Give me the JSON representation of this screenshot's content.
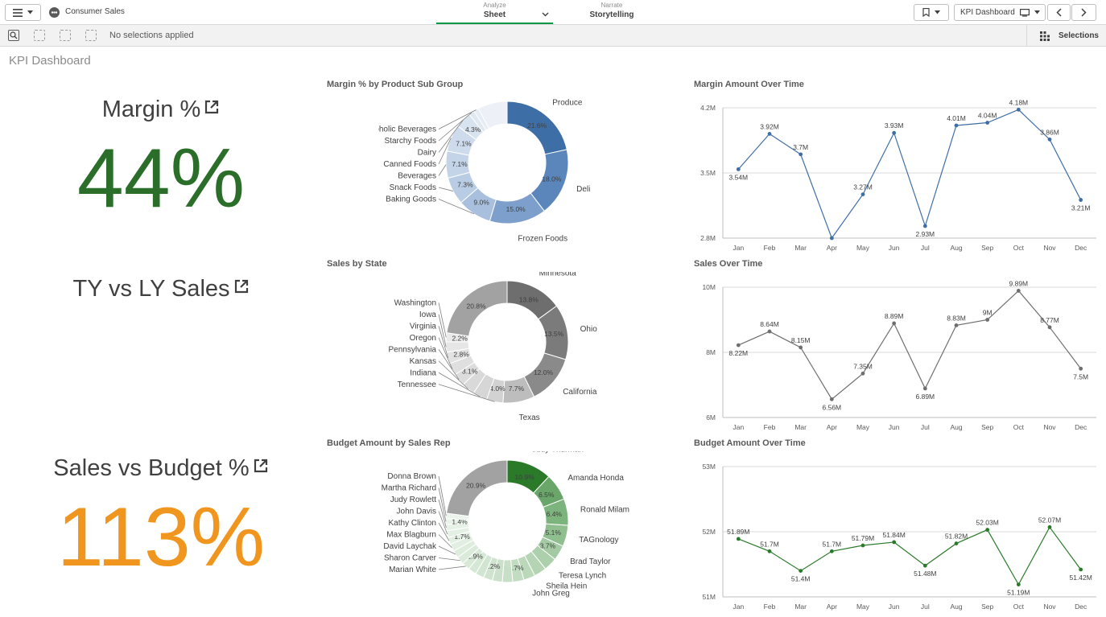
{
  "topbar": {
    "app_name": "Consumer Sales",
    "tabs": [
      {
        "small": "Analyze",
        "big": "Sheet"
      },
      {
        "small": "Narrate",
        "big": "Storytelling"
      }
    ],
    "sheet_nav_label": "KPI Dashboard"
  },
  "selection_bar": {
    "status": "No selections applied",
    "selections_label": "Selections"
  },
  "sheet_title": "KPI Dashboard",
  "kpis": [
    {
      "title": "Margin %",
      "value": "44%",
      "color": "#2a6e2a"
    },
    {
      "title": "TY vs LY Sales",
      "value": "",
      "color": "#404040"
    },
    {
      "title": "Sales vs Budget %",
      "value": "113%",
      "color": "#f0961e"
    }
  ],
  "colors": {
    "accent": "#009845",
    "blue": "#3f6ea6",
    "gray": "#666666",
    "green": "#2a7a2a"
  },
  "chart_data": [
    {
      "id": "donut1",
      "type": "pie",
      "title": "Margin % by Product Sub Group",
      "slices": [
        {
          "label": "Produce",
          "value": 21.6,
          "pct_label": "21.6%",
          "color": "#3e6ea6"
        },
        {
          "label": "Deli",
          "value": 18.0,
          "pct_label": "18.0%",
          "color": "#5a86bb"
        },
        {
          "label": "Frozen Foods",
          "value": 15.0,
          "pct_label": "15.0%",
          "color": "#7d9fcb"
        },
        {
          "label": "Baking Goods",
          "value": 9.0,
          "pct_label": "9.0%",
          "color": "#a8c0de"
        },
        {
          "label": "Snack Foods",
          "value": 7.3,
          "pct_label": "7.3%",
          "color": "#b8cce4"
        },
        {
          "label": "Beverages",
          "value": 7.1,
          "pct_label": "7.1%",
          "color": "#c3d4e9"
        },
        {
          "label": "Canned Foods",
          "value": 7.1,
          "pct_label": "7.1%",
          "color": "#cddbed"
        },
        {
          "label": "Dairy",
          "value": 4.3,
          "pct_label": "4.3%",
          "color": "#d8e3f0"
        },
        {
          "label": "Starchy Foods",
          "value": 1.5,
          "pct_label": "",
          "color": "#e0e8f2"
        },
        {
          "label": "Alcoholic Beverages",
          "value": 1.3,
          "pct_label": "",
          "color": "#e6ecf4"
        },
        {
          "label": "",
          "value": 7.8,
          "pct_label": "",
          "color": "#edf1f7"
        }
      ]
    },
    {
      "id": "donut2",
      "type": "pie",
      "title": "Sales by State",
      "slices": [
        {
          "label": "Minnesota",
          "value": 13.8,
          "pct_label": "13.8%",
          "color": "#6e6e6e"
        },
        {
          "label": "Ohio",
          "value": 13.5,
          "pct_label": "13.5%",
          "color": "#7b7b7b"
        },
        {
          "label": "California",
          "value": 12.0,
          "pct_label": "12.0%",
          "color": "#8a8a8a"
        },
        {
          "label": "Texas",
          "value": 7.7,
          "pct_label": "7.7%",
          "color": "#bdbdbd"
        },
        {
          "label": "Tennessee",
          "value": 4.0,
          "pct_label": "4.0%",
          "color": "#d2d2d2"
        },
        {
          "label": "Indiana",
          "value": 3.5,
          "pct_label": "",
          "color": "#d6d6d6"
        },
        {
          "label": "Kansas",
          "value": 3.2,
          "pct_label": "",
          "color": "#d9d9d9"
        },
        {
          "label": "Pennsylvania",
          "value": 3.1,
          "pct_label": "3.1%",
          "color": "#dcdcdc"
        },
        {
          "label": "Oregon",
          "value": 2.9,
          "pct_label": "",
          "color": "#dfdfdf"
        },
        {
          "label": "Virginia",
          "value": 2.8,
          "pct_label": "2.8%",
          "color": "#e2e2e2"
        },
        {
          "label": "Iowa",
          "value": 2.5,
          "pct_label": "",
          "color": "#e6e6e6"
        },
        {
          "label": "Washington",
          "value": 2.2,
          "pct_label": "2.2%",
          "color": "#e9e9e9"
        },
        {
          "label": "",
          "value": 20.8,
          "pct_label": "20.8%",
          "color": "#a2a2a2"
        }
      ]
    },
    {
      "id": "donut3",
      "type": "pie",
      "title": "Budget Amount by Sales Rep",
      "slices": [
        {
          "label": "Judy Thurman",
          "value": 10.9,
          "pct_label": "10.9%",
          "color": "#2a7a2a"
        },
        {
          "label": "Amanda Honda",
          "value": 6.5,
          "pct_label": "6.5%",
          "color": "#6aa66a"
        },
        {
          "label": "Ronald Milam",
          "value": 6.4,
          "pct_label": "6.4%",
          "color": "#7db37d"
        },
        {
          "label": "TAGnology",
          "value": 5.1,
          "pct_label": "5.1%",
          "color": "#8fbe8f"
        },
        {
          "label": "Brad Taylor",
          "value": 3.7,
          "pct_label": "3.7%",
          "color": "#a3caa3"
        },
        {
          "label": "Teresa Lynch",
          "value": 3.2,
          "pct_label": "",
          "color": "#acd0ac"
        },
        {
          "label": "Sheila Hein",
          "value": 3.0,
          "pct_label": "",
          "color": "#b4d4b4"
        },
        {
          "label": "John Greg",
          "value": 2.8,
          "pct_label": "",
          "color": "#bbd8bb"
        },
        {
          "label": "",
          "value": 2.7,
          "pct_label": "2.7%",
          "color": "#c2dcc2"
        },
        {
          "label": "",
          "value": 2.5,
          "pct_label": "",
          "color": "#c7dfc7"
        },
        {
          "label": "",
          "value": 2.4,
          "pct_label": "",
          "color": "#cbe1cb"
        },
        {
          "label": "",
          "value": 2.2,
          "pct_label": "2.2%",
          "color": "#cfe3cf"
        },
        {
          "label": "",
          "value": 2.1,
          "pct_label": "",
          "color": "#d2e5d2"
        },
        {
          "label": "",
          "value": 2.0,
          "pct_label": "",
          "color": "#d5e7d5"
        },
        {
          "label": "Marian White",
          "value": 1.9,
          "pct_label": "1.9%",
          "color": "#d8e9d8"
        },
        {
          "label": "Sharon Carver",
          "value": 1.9,
          "pct_label": "",
          "color": "#dbebdb"
        },
        {
          "label": "David Laychak",
          "value": 1.8,
          "pct_label": "",
          "color": "#deecde"
        },
        {
          "label": "Max Blagburn",
          "value": 1.8,
          "pct_label": "",
          "color": "#e1eee1"
        },
        {
          "label": "Kathy Clinton",
          "value": 1.7,
          "pct_label": "1.7%",
          "color": "#e3efe3"
        },
        {
          "label": "John Davis",
          "value": 1.6,
          "pct_label": "",
          "color": "#e5f0e5"
        },
        {
          "label": "Judy Rowlett",
          "value": 1.5,
          "pct_label": "",
          "color": "#e7f2e7"
        },
        {
          "label": "Martha Richard",
          "value": 1.4,
          "pct_label": "1.4%",
          "color": "#e9f3e9"
        },
        {
          "label": "Donna Brown",
          "value": 1.3,
          "pct_label": "",
          "color": "#ebf4eb"
        },
        {
          "label": "",
          "value": 20.9,
          "pct_label": "20.9%",
          "color": "#a2a2a2"
        }
      ]
    },
    {
      "id": "line1",
      "type": "line",
      "title": "Margin Amount Over Time",
      "x": [
        "Jan",
        "Feb",
        "Mar",
        "Apr",
        "May",
        "Jun",
        "Jul",
        "Aug",
        "Sep",
        "Oct",
        "Nov",
        "Dec"
      ],
      "values": [
        3.54,
        3.92,
        3.7,
        2.8,
        3.27,
        3.93,
        2.93,
        4.01,
        4.04,
        4.18,
        3.86,
        3.21
      ],
      "labels": [
        "3.54M",
        "3.92M",
        "3.7M",
        "",
        "3.27M",
        "3.93M",
        "2.93M",
        "4.01M",
        "4.04M",
        "4.18M",
        "3.86M",
        "3.21M"
      ],
      "yticks": [
        "2.8M",
        "3.5M",
        "4.2M"
      ],
      "ylim": [
        2.8,
        4.2
      ],
      "color": "#3f6ea6"
    },
    {
      "id": "line2",
      "type": "line",
      "title": "Sales Over Time",
      "x": [
        "Jan",
        "Feb",
        "Mar",
        "Apr",
        "May",
        "Jun",
        "Jul",
        "Aug",
        "Sep",
        "Oct",
        "Nov",
        "Dec"
      ],
      "values": [
        8.22,
        8.64,
        8.15,
        6.56,
        7.35,
        8.89,
        6.89,
        8.83,
        9.0,
        9.89,
        8.77,
        7.5
      ],
      "labels": [
        "8.22M",
        "8.64M",
        "8.15M",
        "6.56M",
        "7.35M",
        "8.89M",
        "6.89M",
        "8.83M",
        "9M",
        "9.89M",
        "8.77M",
        "7.5M"
      ],
      "yticks": [
        "6M",
        "8M",
        "10M"
      ],
      "ylim": [
        6,
        10
      ],
      "color": "#6e6e6e"
    },
    {
      "id": "line3",
      "type": "line",
      "title": "Budget Amount Over Time",
      "x": [
        "Jan",
        "Feb",
        "Mar",
        "Apr",
        "May",
        "Jun",
        "Jul",
        "Aug",
        "Sep",
        "Oct",
        "Nov",
        "Dec"
      ],
      "values": [
        51.89,
        51.7,
        51.4,
        51.7,
        51.79,
        51.84,
        51.48,
        51.82,
        52.03,
        51.19,
        52.07,
        51.42
      ],
      "labels": [
        "51.89M",
        "51.7M",
        "51.4M",
        "51.7M",
        "51.79M",
        "51.84M",
        "51.48M",
        "51.82M",
        "52.03M",
        "51.19M",
        "52.07M",
        "51.42M"
      ],
      "yticks": [
        "51M",
        "52M",
        "53M"
      ],
      "ylim": [
        51,
        53
      ],
      "color": "#2a7a2a"
    }
  ]
}
